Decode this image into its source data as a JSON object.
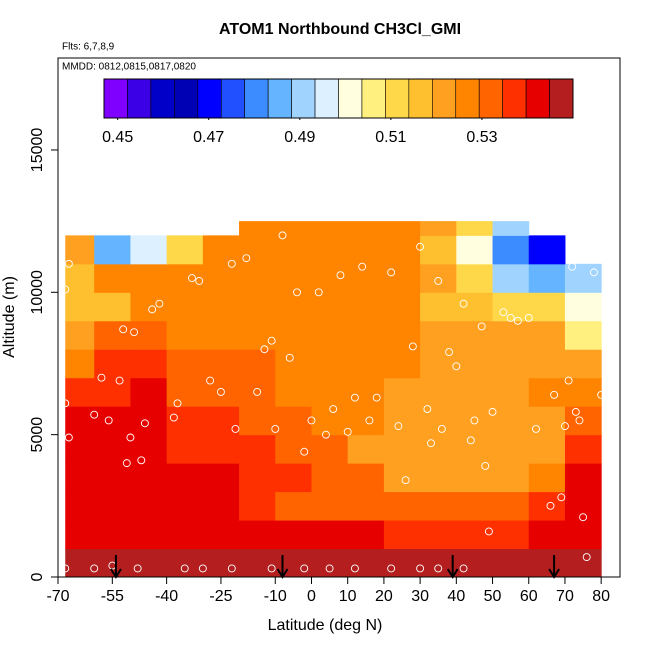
{
  "chart_data": {
    "type": "heatmap",
    "title": "ATOM1 Northbound CH3Cl_GMI",
    "subtitle": "Flts: 6,7,8,9",
    "annotation": "MMDD: 0812,0815,0817,0820",
    "x_label": "Latitude (deg N)",
    "y_label": "Altitude (m)",
    "xlim": [
      -70,
      85.2
    ],
    "ylim": [
      0,
      18230
    ],
    "xticks": [
      -70,
      -55,
      -40,
      -25,
      -10,
      0,
      10,
      20,
      30,
      40,
      50,
      60,
      70,
      80
    ],
    "yticks": [
      0,
      5000,
      10000,
      15000
    ],
    "x_edges": [
      -68,
      -60,
      -50,
      -40,
      -30,
      -20,
      -10,
      0,
      10,
      20,
      30,
      40,
      50,
      60,
      70,
      80
    ],
    "y_edges": [
      0,
      1000,
      2000,
      3000,
      4000,
      5000,
      6000,
      7000,
      8000,
      9000,
      10000,
      11000,
      12000,
      12500
    ],
    "z": [
      [
        0.545,
        0.545,
        0.545,
        0.545,
        0.545,
        0.545,
        0.545,
        0.545,
        0.545,
        0.545,
        0.545,
        0.545,
        0.545,
        0.545,
        0.545
      ],
      [
        0.54,
        0.54,
        0.54,
        0.54,
        0.54,
        0.54,
        0.54,
        0.54,
        0.54,
        0.535,
        0.535,
        0.535,
        0.535,
        0.54,
        0.54
      ],
      [
        0.54,
        0.54,
        0.54,
        0.54,
        0.54,
        0.535,
        0.53,
        0.53,
        0.53,
        0.53,
        0.53,
        0.53,
        0.53,
        0.535,
        0.54
      ],
      [
        0.54,
        0.54,
        0.54,
        0.54,
        0.54,
        0.535,
        0.535,
        0.53,
        0.53,
        0.52,
        0.52,
        0.52,
        0.52,
        0.525,
        0.54
      ],
      [
        0.54,
        0.54,
        0.54,
        0.535,
        0.535,
        0.535,
        0.53,
        0.53,
        0.52,
        0.52,
        0.52,
        0.52,
        0.52,
        0.52,
        0.535
      ],
      [
        0.54,
        0.54,
        0.54,
        0.535,
        0.535,
        0.53,
        0.53,
        0.525,
        0.525,
        0.52,
        0.52,
        0.52,
        0.52,
        0.52,
        0.53
      ],
      [
        0.535,
        0.535,
        0.54,
        0.53,
        0.53,
        0.53,
        0.525,
        0.525,
        0.525,
        0.52,
        0.52,
        0.52,
        0.52,
        0.525,
        0.525
      ],
      [
        0.525,
        0.535,
        0.535,
        0.53,
        0.53,
        0.53,
        0.527,
        0.527,
        0.527,
        0.527,
        0.52,
        0.52,
        0.52,
        0.52,
        0.52
      ],
      [
        0.52,
        0.53,
        0.53,
        0.528,
        0.528,
        0.528,
        0.528,
        0.528,
        0.528,
        0.528,
        0.52,
        0.52,
        0.52,
        0.52,
        0.505
      ],
      [
        0.515,
        0.515,
        0.525,
        0.525,
        0.525,
        0.525,
        0.525,
        0.525,
        0.525,
        0.525,
        0.518,
        0.518,
        0.512,
        0.51,
        0.5
      ],
      [
        0.515,
        0.525,
        0.525,
        0.525,
        0.527,
        0.527,
        0.527,
        0.527,
        0.527,
        0.527,
        0.52,
        0.51,
        0.49,
        0.485,
        0.49
      ],
      [
        0.52,
        0.485,
        0.495,
        0.51,
        0.525,
        0.527,
        0.527,
        0.527,
        0.527,
        0.527,
        0.515,
        0.5,
        0.48,
        0.47,
        null
      ],
      [
        null,
        null,
        null,
        null,
        null,
        0.527,
        0.527,
        0.527,
        0.527,
        0.527,
        0.52,
        0.51,
        0.49,
        null,
        null
      ]
    ],
    "colorbar_range": [
      0.447,
      0.55
    ],
    "colorbar_ticks": [
      0.45,
      0.47,
      0.49,
      0.51,
      0.53
    ],
    "colors": [
      "#7f00ff",
      "#3c00e6",
      "#0000c8",
      "#0000b4",
      "#0000ff",
      "#2050ff",
      "#3c8cff",
      "#64b4ff",
      "#a0d4ff",
      "#dcf0ff",
      "#ffffe0",
      "#fff080",
      "#ffd84a",
      "#ffc030",
      "#ffa020",
      "#ff8400",
      "#ff6400",
      "#ff3000",
      "#e60000",
      "#b41e1e"
    ],
    "obs_lat": [
      -68,
      -67,
      -68,
      -68,
      -67,
      -60,
      -58,
      -56,
      -55,
      -53,
      -52,
      -51,
      -50,
      -49,
      -47,
      -46,
      -44,
      -42,
      -38,
      -37,
      -35,
      -33,
      -31,
      -28,
      -25,
      -22,
      -21,
      -18,
      -15,
      -13,
      -11,
      -10,
      -8,
      -6,
      -4,
      -2,
      0,
      2,
      4,
      6,
      8,
      10,
      12,
      14,
      16,
      18,
      22,
      24,
      26,
      28,
      30,
      32,
      33,
      35,
      36,
      38,
      40,
      42,
      44,
      45,
      47,
      48,
      49,
      50,
      53,
      55,
      57,
      60,
      62,
      66,
      67,
      69,
      70,
      71,
      72,
      73,
      74,
      75,
      76,
      78,
      80,
      -60,
      -48,
      -30,
      -22,
      -11,
      -2,
      5,
      12,
      22,
      30,
      35,
      42
    ],
    "obs_alt": [
      300,
      4900,
      6100,
      10100,
      11000,
      5700,
      7000,
      5500,
      400,
      6900,
      8700,
      4000,
      4900,
      8600,
      4100,
      5400,
      9400,
      9600,
      5600,
      6100,
      300,
      10500,
      10400,
      6900,
      6500,
      11000,
      5200,
      11200,
      6500,
      8000,
      8300,
      5200,
      12000,
      7700,
      10000,
      4400,
      5500,
      10000,
      5000,
      5900,
      10600,
      5100,
      6300,
      10900,
      5500,
      6300,
      10700,
      5300,
      3400,
      8100,
      11600,
      5900,
      4700,
      10400,
      5200,
      7900,
      7400,
      9600,
      4800,
      5500,
      8800,
      3900,
      1600,
      5800,
      9300,
      9100,
      9000,
      9100,
      5200,
      2500,
      6400,
      2800,
      5300,
      6900,
      10900,
      5800,
      5500,
      2100,
      700,
      10700,
      6400,
      300,
      300,
      300,
      300,
      300,
      300,
      300,
      300,
      300,
      300,
      300,
      300
    ],
    "arrows": [
      -54,
      -8,
      39,
      67
    ]
  }
}
